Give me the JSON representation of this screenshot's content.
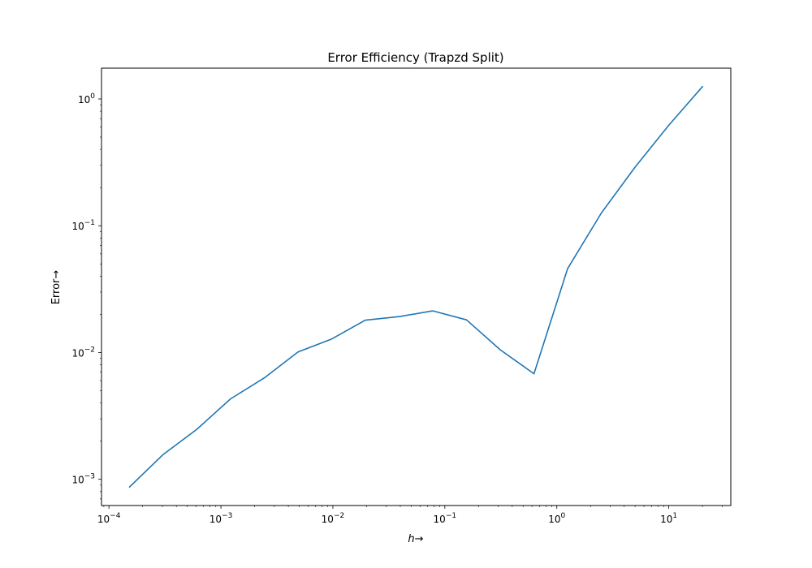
{
  "chart_data": {
    "type": "line",
    "title": "Error Efficiency (Trapzd Split)",
    "xlabel": "h→",
    "ylabel": "Error→",
    "xscale": "log",
    "yscale": "log",
    "xlim": [
      8.58e-05,
      35.8
    ],
    "ylim": [
      0.000621,
      1.75
    ],
    "grid": false,
    "line_color": "#1f77b4",
    "x_ticks": [
      {
        "value": 0.0001,
        "base": "10",
        "exp": "−4"
      },
      {
        "value": 0.001,
        "base": "10",
        "exp": "−3"
      },
      {
        "value": 0.01,
        "base": "10",
        "exp": "−2"
      },
      {
        "value": 0.1,
        "base": "10",
        "exp": "−1"
      },
      {
        "value": 1,
        "base": "10",
        "exp": "0"
      },
      {
        "value": 10,
        "base": "10",
        "exp": "1"
      }
    ],
    "y_ticks": [
      {
        "value": 0.001,
        "base": "10",
        "exp": "−3"
      },
      {
        "value": 0.01,
        "base": "10",
        "exp": "−2"
      },
      {
        "value": 0.1,
        "base": "10",
        "exp": "−1"
      },
      {
        "value": 1,
        "base": "10",
        "exp": "0"
      }
    ],
    "series": [
      {
        "x": [
          0.000153,
          0.000305,
          0.00061,
          0.00122,
          0.00244,
          0.00488,
          0.00977,
          0.0195,
          0.0391,
          0.0781,
          0.156,
          0.3125,
          0.625,
          1.25,
          2.5,
          5,
          10,
          20
        ],
        "values": [
          0.00087,
          0.00157,
          0.00248,
          0.00431,
          0.00631,
          0.0101,
          0.0128,
          0.018,
          0.0192,
          0.0213,
          0.0181,
          0.0105,
          0.0068,
          0.046,
          0.126,
          0.29,
          0.62,
          1.25
        ]
      }
    ]
  }
}
